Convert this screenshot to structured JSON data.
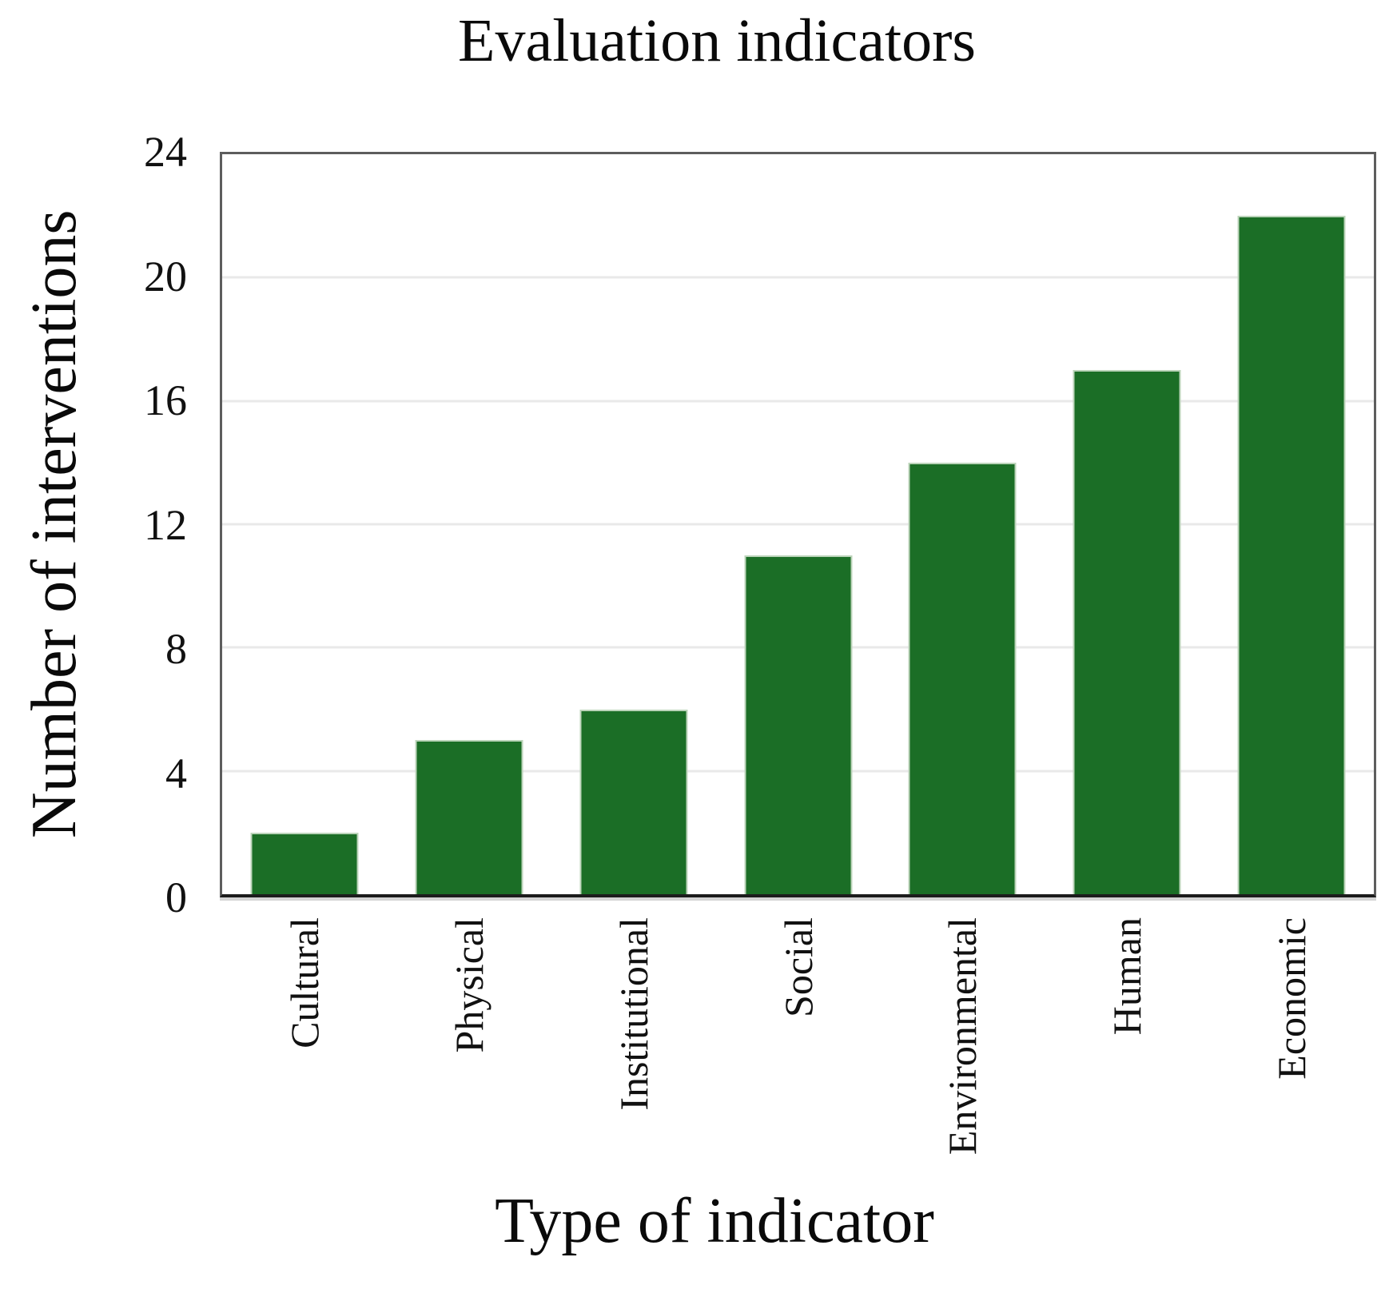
{
  "figure": {
    "title": "Evaluation indicators",
    "x_axis_label": "Type of indicator",
    "y_axis_label": "Number of interventions"
  },
  "chart_data": {
    "type": "bar",
    "title": "Evaluation indicators",
    "xlabel": "Type of indicator",
    "ylabel": "Number of interventions",
    "categories": [
      "Cultural",
      "Physical",
      "Institutional",
      "Social",
      "Environmental",
      "Human",
      "Economic"
    ],
    "values": [
      2,
      5,
      6,
      11,
      14,
      17,
      22
    ],
    "ylim": [
      0,
      24
    ],
    "yticks": [
      0,
      4,
      8,
      12,
      16,
      20,
      24
    ],
    "grid": "horizontal",
    "legend_position": "none",
    "bar_color": "#1b6e26",
    "bar_edge_color": "#bcd4ba",
    "gridline_color": "#e9e9e9",
    "frame_color": "#5d5d5d",
    "axis_color": "#1c1c1c"
  }
}
